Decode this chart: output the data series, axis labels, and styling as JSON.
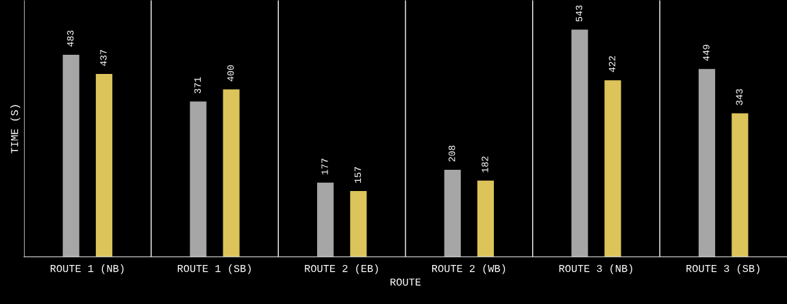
{
  "chart_data": {
    "type": "bar",
    "xlabel": "ROUTE",
    "ylabel": "TIME (S)",
    "categories": [
      "ROUTE 1 (NB)",
      "ROUTE 1 (SB)",
      "ROUTE 2 (EB)",
      "ROUTE 2 (WB)",
      "ROUTE 3 (NB)",
      "ROUTE 3 (SB)"
    ],
    "series": [
      {
        "color": "#a6a6a6",
        "values": [
          483,
          371,
          177,
          208,
          543,
          449
        ]
      },
      {
        "color": "#dcc35a",
        "values": [
          437,
          400,
          157,
          182,
          422,
          343
        ]
      }
    ],
    "ylim": [
      0,
      613
    ],
    "data_labels": true,
    "grid": "x",
    "tick_labels": "x",
    "legend": false
  }
}
